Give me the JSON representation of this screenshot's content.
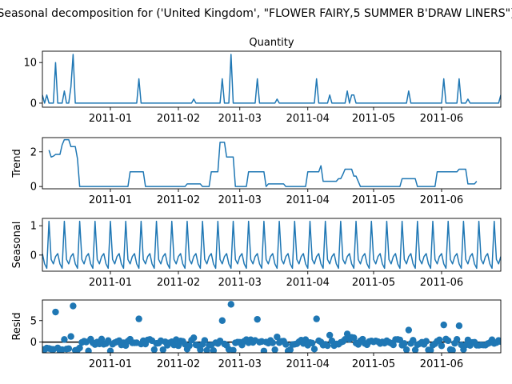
{
  "suptitle": "Seasonal decomposition for ('United Kingdom', \"FLOWER FAIRY,5 SUMMER B'DRAW LINERS\")",
  "accent_color": "#1f77b4",
  "chart_data": [
    {
      "type": "line",
      "title": "Quantity",
      "ylabel": "",
      "x_start": "2010-12-01",
      "x_end": "2011-06-28",
      "xtick_labels": [
        "2011-01",
        "2011-02",
        "2011-03",
        "2011-04",
        "2011-05",
        "2011-06"
      ],
      "xticks": [
        "2011-01-01",
        "2011-02-01",
        "2011-03-01",
        "2011-04-01",
        "2011-05-01",
        "2011-06-01"
      ],
      "ylim": [
        -1,
        12.8
      ],
      "yticks": [
        0,
        10
      ],
      "series": [
        {
          "points": [
            [
              "2010-12-01",
              2
            ],
            [
              "2010-12-02",
              0
            ],
            [
              "2010-12-03",
              2
            ],
            [
              "2010-12-04",
              0
            ],
            [
              "2010-12-05",
              0
            ],
            [
              "2010-12-06",
              0
            ],
            [
              "2010-12-07",
              10
            ],
            [
              "2010-12-08",
              0
            ],
            [
              "2010-12-09",
              0
            ],
            [
              "2010-12-10",
              0
            ],
            [
              "2010-12-11",
              3
            ],
            [
              "2010-12-12",
              0
            ],
            [
              "2010-12-13",
              0
            ],
            [
              "2010-12-14",
              4
            ],
            [
              "2010-12-15",
              12
            ],
            [
              "2010-12-16",
              0
            ],
            [
              "2011-01-13",
              0
            ],
            [
              "2011-01-14",
              6
            ],
            [
              "2011-01-15",
              0
            ],
            [
              "2011-02-07",
              0
            ],
            [
              "2011-02-08",
              1
            ],
            [
              "2011-02-09",
              0
            ],
            [
              "2011-02-20",
              0
            ],
            [
              "2011-02-21",
              6
            ],
            [
              "2011-02-22",
              0
            ],
            [
              "2011-02-24",
              0
            ],
            [
              "2011-02-25",
              12
            ],
            [
              "2011-02-26",
              0
            ],
            [
              "2011-03-08",
              0
            ],
            [
              "2011-03-09",
              6
            ],
            [
              "2011-03-10",
              0
            ],
            [
              "2011-03-17",
              0
            ],
            [
              "2011-03-18",
              1
            ],
            [
              "2011-03-19",
              0
            ],
            [
              "2011-04-04",
              0
            ],
            [
              "2011-04-05",
              6
            ],
            [
              "2011-04-06",
              0
            ],
            [
              "2011-04-10",
              0
            ],
            [
              "2011-04-11",
              2
            ],
            [
              "2011-04-12",
              0
            ],
            [
              "2011-04-18",
              0
            ],
            [
              "2011-04-19",
              3
            ],
            [
              "2011-04-20",
              0
            ],
            [
              "2011-04-21",
              2
            ],
            [
              "2011-04-22",
              2
            ],
            [
              "2011-04-23",
              0
            ],
            [
              "2011-05-16",
              0
            ],
            [
              "2011-05-17",
              3
            ],
            [
              "2011-05-18",
              0
            ],
            [
              "2011-06-01",
              0
            ],
            [
              "2011-06-02",
              6
            ],
            [
              "2011-06-03",
              0
            ],
            [
              "2011-06-08",
              0
            ],
            [
              "2011-06-09",
              6
            ],
            [
              "2011-06-10",
              0
            ],
            [
              "2011-06-12",
              0
            ],
            [
              "2011-06-13",
              1
            ],
            [
              "2011-06-14",
              0
            ],
            [
              "2011-06-27",
              0
            ],
            [
              "2011-06-28",
              2
            ]
          ]
        }
      ]
    },
    {
      "type": "line",
      "title": "",
      "ylabel": "Trend",
      "x_start": "2010-12-01",
      "x_end": "2011-06-28",
      "xtick_labels": [
        "2011-01",
        "2011-02",
        "2011-03",
        "2011-04",
        "2011-05",
        "2011-06"
      ],
      "xticks": [
        "2011-01-01",
        "2011-02-01",
        "2011-03-01",
        "2011-04-01",
        "2011-05-01",
        "2011-06-01"
      ],
      "ylim": [
        -0.13,
        2.82
      ],
      "yticks": [
        0,
        2
      ],
      "series": [
        {
          "points": [
            [
              "2010-12-04",
              2.1
            ],
            [
              "2010-12-05",
              1.7
            ],
            [
              "2010-12-06",
              1.75
            ],
            [
              "2010-12-07",
              1.85
            ],
            [
              "2010-12-09",
              1.85
            ],
            [
              "2010-12-10",
              2.4
            ],
            [
              "2010-12-11",
              2.7
            ],
            [
              "2010-12-13",
              2.7
            ],
            [
              "2010-12-14",
              2.3
            ],
            [
              "2010-12-16",
              2.3
            ],
            [
              "2010-12-17",
              1.6
            ],
            [
              "2010-12-18",
              0
            ],
            [
              "2011-01-09",
              0
            ],
            [
              "2011-01-10",
              0.85
            ],
            [
              "2011-01-16",
              0.85
            ],
            [
              "2011-01-17",
              0
            ],
            [
              "2011-02-04",
              0
            ],
            [
              "2011-02-05",
              0.15
            ],
            [
              "2011-02-11",
              0.15
            ],
            [
              "2011-02-12",
              0
            ],
            [
              "2011-02-15",
              0
            ],
            [
              "2011-02-16",
              0.85
            ],
            [
              "2011-02-19",
              0.85
            ],
            [
              "2011-02-20",
              2.55
            ],
            [
              "2011-02-22",
              2.55
            ],
            [
              "2011-02-23",
              1.7
            ],
            [
              "2011-02-26",
              1.7
            ],
            [
              "2011-02-27",
              0
            ],
            [
              "2011-03-04",
              0
            ],
            [
              "2011-03-05",
              0.85
            ],
            [
              "2011-03-12",
              0.85
            ],
            [
              "2011-03-13",
              0
            ],
            [
              "2011-03-14",
              0.15
            ],
            [
              "2011-03-21",
              0.15
            ],
            [
              "2011-03-22",
              0
            ],
            [
              "2011-03-31",
              0
            ],
            [
              "2011-04-01",
              0.85
            ],
            [
              "2011-04-06",
              0.85
            ],
            [
              "2011-04-07",
              1.2
            ],
            [
              "2011-04-08",
              0.3
            ],
            [
              "2011-04-14",
              0.3
            ],
            [
              "2011-04-15",
              0.45
            ],
            [
              "2011-04-16",
              0.45
            ],
            [
              "2011-04-17",
              0.7
            ],
            [
              "2011-04-18",
              1.0
            ],
            [
              "2011-04-21",
              1.0
            ],
            [
              "2011-04-22",
              0.6
            ],
            [
              "2011-04-23",
              0.6
            ],
            [
              "2011-04-24",
              0.3
            ],
            [
              "2011-04-25",
              0
            ],
            [
              "2011-05-13",
              0
            ],
            [
              "2011-05-14",
              0.45
            ],
            [
              "2011-05-20",
              0.45
            ],
            [
              "2011-05-21",
              0
            ],
            [
              "2011-05-29",
              0
            ],
            [
              "2011-05-30",
              0.85
            ],
            [
              "2011-06-08",
              0.85
            ],
            [
              "2011-06-09",
              1.0
            ],
            [
              "2011-06-12",
              1.0
            ],
            [
              "2011-06-13",
              0.15
            ],
            [
              "2011-06-16",
              0.15
            ],
            [
              "2011-06-17",
              0.3
            ]
          ]
        }
      ]
    },
    {
      "type": "line",
      "title": "",
      "ylabel": "Seasonal",
      "x_start": "2010-12-01",
      "x_end": "2011-06-28",
      "xtick_labels": [
        "2011-01",
        "2011-02",
        "2011-03",
        "2011-04",
        "2011-05",
        "2011-06"
      ],
      "xticks": [
        "2011-01-01",
        "2011-02-01",
        "2011-03-01",
        "2011-04-01",
        "2011-05-01",
        "2011-06-01"
      ],
      "ylim": [
        -0.55,
        1.25
      ],
      "yticks": [
        0,
        1
      ],
      "period": 7,
      "first_date": "2010-12-01",
      "last_date": "2011-06-28",
      "pattern": [
        0.05,
        -0.3,
        -0.45,
        1.15,
        -0.15,
        -0.3,
        -0.05
      ]
    },
    {
      "type": "scatter",
      "title": "",
      "ylabel": "Resid",
      "x_start": "2010-12-01",
      "x_end": "2011-06-28",
      "xtick_labels": [
        "2011-01",
        "2011-02",
        "2011-03",
        "2011-04",
        "2011-05",
        "2011-06"
      ],
      "xticks": [
        "2011-01-01",
        "2011-02-01",
        "2011-03-01",
        "2011-04-01",
        "2011-05-01",
        "2011-06-01"
      ],
      "ylim": [
        -2.5,
        9.8
      ],
      "yticks": [
        0,
        5
      ],
      "baseline": 0,
      "outliers": [
        [
          "2010-12-07",
          7.0
        ],
        [
          "2010-12-15",
          8.4
        ],
        [
          "2011-01-14",
          5.4
        ],
        [
          "2011-02-21",
          5.0
        ],
        [
          "2011-02-25",
          8.8
        ],
        [
          "2011-03-09",
          5.3
        ],
        [
          "2011-04-05",
          5.4
        ],
        [
          "2011-04-19",
          1.9
        ],
        [
          "2011-05-17",
          2.8
        ],
        [
          "2011-06-02",
          4.0
        ],
        [
          "2011-06-09",
          3.8
        ],
        [
          "2011-04-11",
          1.6
        ],
        [
          "2010-12-14",
          1.3
        ],
        [
          "2010-12-11",
          0.6
        ],
        [
          "2011-02-08",
          1.0
        ],
        [
          "2011-03-18",
          1.2
        ],
        [
          "2011-04-21",
          1.1
        ],
        [
          "2011-04-22",
          1.0
        ],
        [
          "2011-06-13",
          0.5
        ]
      ],
      "noise": [
        [
          -1.6,
          -1.3,
          -1.5,
          -1.2,
          -1.4,
          -1.1,
          -1.5
        ],
        [
          -0.3,
          0.4,
          -0.6,
          0.2,
          -0.9,
          0.5,
          -0.2
        ],
        [
          -1.2,
          -0.8,
          -1.4,
          0.3,
          -0.5,
          0.1,
          -0.7
        ]
      ]
    }
  ]
}
